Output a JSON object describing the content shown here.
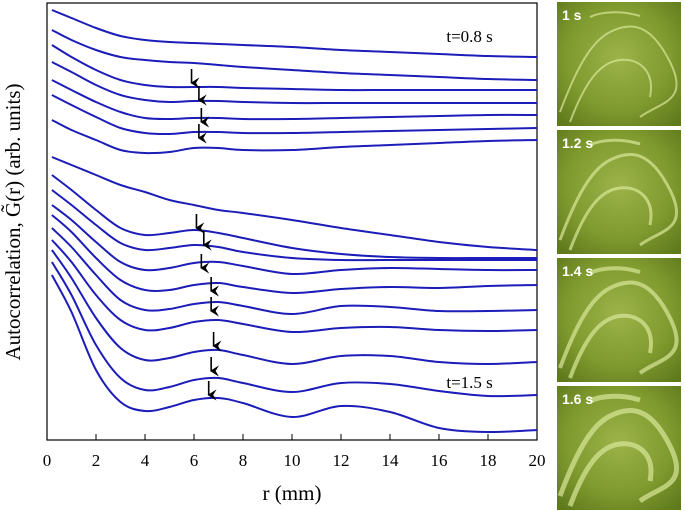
{
  "chart_data": {
    "type": "line",
    "xlabel": "r (mm)",
    "ylabel": "Autocorrelation, G̃(r) (arb. units)",
    "x": [
      0.2,
      1,
      2,
      3,
      4,
      5,
      6,
      7,
      8,
      10,
      12,
      14,
      16,
      18,
      20
    ],
    "xlim": [
      0,
      20
    ],
    "xticks": [
      0,
      2,
      4,
      6,
      8,
      10,
      12,
      14,
      16,
      18,
      20
    ],
    "ylim": [
      0,
      43.7
    ],
    "color": "#1c1cb8",
    "series": [
      {
        "values": [
          43.0,
          42.2,
          41.2,
          40.4,
          40.0,
          39.8,
          39.7,
          39.6,
          39.5,
          39.3,
          39.0,
          38.8,
          38.6,
          38.4,
          38.3
        ]
      },
      {
        "values": [
          41.0,
          40.0,
          39.0,
          38.3,
          38.0,
          37.8,
          37.7,
          37.5,
          37.3,
          37.0,
          36.7,
          36.5,
          36.3,
          36.1,
          36.0
        ]
      },
      {
        "values": [
          39.5,
          38.3,
          37.0,
          36.0,
          35.5,
          35.3,
          35.3,
          35.3,
          35.2,
          35.1,
          35.0,
          35.0,
          35.0,
          35.0,
          35.0
        ]
      },
      {
        "values": [
          37.8,
          36.8,
          35.5,
          34.5,
          34.0,
          33.8,
          33.9,
          33.9,
          33.8,
          33.7,
          33.7,
          33.7,
          33.7,
          33.7,
          33.7
        ]
      },
      {
        "values": [
          36.0,
          35.0,
          33.8,
          32.8,
          32.2,
          32.1,
          32.2,
          32.2,
          32.1,
          32.1,
          32.2,
          32.3,
          32.4,
          32.5,
          32.5
        ]
      },
      {
        "values": [
          34.5,
          33.5,
          32.3,
          31.2,
          30.7,
          30.6,
          30.8,
          30.8,
          30.7,
          30.7,
          30.8,
          30.9,
          31.0,
          31.1,
          31.2
        ]
      },
      {
        "values": [
          32.0,
          31.0,
          30.0,
          29.0,
          28.7,
          28.8,
          29.2,
          29.2,
          29.0,
          29.0,
          29.3,
          29.5,
          29.7,
          29.9,
          30.0
        ]
      },
      {
        "values": [
          28.3,
          27.5,
          26.5,
          25.5,
          24.8,
          24.0,
          23.5,
          23.0,
          22.7,
          22.0,
          21.2,
          20.5,
          19.8,
          19.3,
          19.0
        ]
      },
      {
        "values": [
          26.5,
          25.0,
          23.0,
          21.2,
          20.5,
          20.7,
          21.0,
          20.7,
          20.2,
          19.2,
          18.6,
          18.3,
          18.2,
          18.2,
          18.2
        ]
      },
      {
        "values": [
          25.0,
          23.5,
          21.5,
          19.7,
          19.0,
          19.2,
          19.5,
          19.3,
          18.8,
          18.2,
          18.0,
          18.0,
          18.0,
          18.0,
          18.0
        ]
      },
      {
        "values": [
          23.5,
          22.0,
          19.8,
          17.8,
          17.0,
          17.2,
          17.7,
          17.8,
          17.4,
          16.6,
          17.0,
          17.2,
          17.1,
          17.0,
          17.0
        ]
      },
      {
        "values": [
          22.5,
          20.8,
          18.2,
          16.0,
          15.0,
          15.0,
          15.5,
          15.7,
          15.3,
          14.7,
          15.1,
          15.3,
          15.2,
          15.4,
          15.5
        ]
      },
      {
        "values": [
          21.2,
          19.3,
          16.5,
          14.0,
          13.0,
          13.1,
          13.6,
          13.8,
          13.4,
          12.6,
          13.4,
          13.3,
          12.9,
          12.9,
          13.0
        ]
      },
      {
        "values": [
          20.0,
          17.8,
          14.5,
          12.0,
          11.0,
          11.2,
          11.8,
          12.0,
          11.6,
          10.8,
          11.2,
          11.3,
          11.0,
          10.9,
          11.0
        ]
      },
      {
        "values": [
          19.0,
          16.2,
          12.2,
          9.2,
          8.0,
          8.2,
          8.8,
          9.0,
          8.5,
          7.6,
          8.4,
          8.4,
          7.8,
          7.6,
          7.8
        ]
      },
      {
        "values": [
          17.8,
          14.5,
          9.5,
          6.2,
          5.0,
          5.3,
          6.0,
          6.2,
          5.7,
          4.8,
          5.7,
          5.6,
          4.9,
          4.4,
          4.5
        ]
      },
      {
        "values": [
          16.5,
          12.8,
          7.0,
          3.8,
          2.9,
          3.3,
          4.0,
          4.2,
          3.7,
          2.3,
          3.4,
          2.8,
          1.2,
          0.8,
          1.0
        ]
      }
    ],
    "peak_arrows": [
      {
        "x": 5.9,
        "y": 35.5
      },
      {
        "x": 6.2,
        "y": 33.8
      },
      {
        "x": 6.3,
        "y": 31.6
      },
      {
        "x": 6.2,
        "y": 30.0
      },
      {
        "x": 6.1,
        "y": 21.0
      },
      {
        "x": 6.4,
        "y": 19.3
      },
      {
        "x": 6.3,
        "y": 17.0
      },
      {
        "x": 6.7,
        "y": 14.7
      },
      {
        "x": 6.7,
        "y": 12.7
      },
      {
        "x": 6.8,
        "y": 9.2
      },
      {
        "x": 6.7,
        "y": 6.7
      },
      {
        "x": 6.6,
        "y": 4.3
      }
    ],
    "annotations": [
      {
        "text": "t=0.8 s",
        "x": 16.3,
        "y": 39.8
      },
      {
        "text": "t=1.5 s",
        "x": 16.3,
        "y": 5.2
      }
    ]
  },
  "image_panels": [
    {
      "label": "1 s"
    },
    {
      "label": "1.2 s"
    },
    {
      "label": "1.4 s"
    },
    {
      "label": "1.6 s"
    }
  ]
}
